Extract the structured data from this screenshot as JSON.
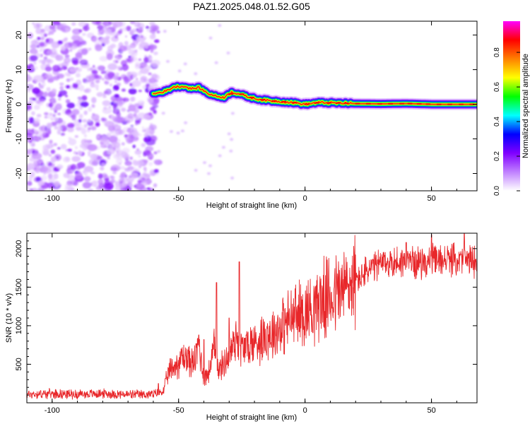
{
  "figure": {
    "title": "PAZ1.2025.048.01.52.G05"
  },
  "chart_data": [
    {
      "type": "heatmap",
      "xlabel": "Height of straight line (km)",
      "ylabel": "Frequency (Hz)",
      "xlim": [
        -110,
        68
      ],
      "ylim": [
        -25,
        24
      ],
      "x_ticks": [
        -100,
        -50,
        0,
        50
      ],
      "y_ticks": [
        -20,
        -10,
        0,
        10,
        20
      ],
      "grid": false,
      "noise_region": {
        "x": [
          -110,
          -58
        ],
        "y": [
          -25,
          24
        ]
      },
      "signal_ridge": {
        "x": [
          -60,
          -55,
          -52,
          -48,
          -45,
          -42,
          -38,
          -35,
          -32,
          -29,
          -26,
          -22,
          -18,
          -14,
          -10,
          -5,
          0,
          5,
          10,
          20,
          30,
          40,
          50,
          60,
          68
        ],
        "y": [
          3,
          3.8,
          5,
          5.2,
          4.5,
          4.8,
          3,
          2.3,
          2.0,
          3.5,
          3.0,
          2.0,
          1.4,
          1.0,
          0.8,
          0.5,
          0.0,
          0.5,
          0.4,
          0.2,
          0.1,
          0.2,
          0.0,
          0.0,
          0.0
        ]
      },
      "colorbar": {
        "label": "Normalized spectral amplitude",
        "ticks": [
          0.0,
          0.2,
          0.4,
          0.6,
          0.8
        ],
        "range": [
          0.0,
          0.98
        ],
        "colors": [
          "#ffffff",
          "#c080ff",
          "#8000ff",
          "#0000ff",
          "#00ffff",
          "#00ff00",
          "#ffff00",
          "#ff8000",
          "#ff0000",
          "#ff00ff"
        ]
      }
    },
    {
      "type": "line",
      "xlabel": "Height of straight line (km)",
      "ylabel": "SNR (10 * v/v)",
      "xlim": [
        -110,
        68
      ],
      "ylim": [
        0,
        2200
      ],
      "x_ticks": [
        -100,
        -50,
        0,
        50
      ],
      "y_ticks": [
        500,
        1000,
        1500,
        2000
      ],
      "grid": false,
      "color": "#e8272a",
      "series": [
        {
          "x": [
            -110,
            -100,
            -90,
            -80,
            -70,
            -60,
            -56,
            -54,
            -50,
            -48,
            -46,
            -44,
            -42,
            -40,
            -38,
            -36,
            -34,
            -32,
            -30,
            -28,
            -27,
            -26,
            -24,
            -22,
            -20,
            -18,
            -16,
            -14,
            -12,
            -10,
            -8,
            -6,
            -4,
            -2,
            0,
            2,
            5,
            10,
            15,
            20,
            25,
            30,
            35,
            40,
            45,
            50,
            55,
            60,
            65,
            68
          ],
          "y": [
            110,
            120,
            110,
            120,
            105,
            110,
            150,
            400,
            520,
            600,
            560,
            500,
            760,
            320,
            400,
            700,
            420,
            520,
            620,
            800,
            900,
            700,
            720,
            750,
            780,
            820,
            880,
            900,
            920,
            980,
            1020,
            1080,
            1120,
            1150,
            1180,
            1220,
            1300,
            1380,
            1480,
            1580,
            1720,
            1800,
            1820,
            1840,
            1820,
            1840,
            1860,
            1850,
            1840,
            1850
          ]
        }
      ],
      "spikes": [
        {
          "x": -58,
          "y": 250
        },
        {
          "x": -54,
          "y": 450
        },
        {
          "x": -49,
          "y": 700
        },
        {
          "x": -42,
          "y": 880
        },
        {
          "x": -40,
          "y": 820
        },
        {
          "x": -35,
          "y": 1560
        },
        {
          "x": -30,
          "y": 1100
        },
        {
          "x": -26,
          "y": 1830
        },
        {
          "x": 40,
          "y": 2080
        },
        {
          "x": 50,
          "y": 2180
        },
        {
          "x": 63,
          "y": 2220
        }
      ]
    }
  ]
}
